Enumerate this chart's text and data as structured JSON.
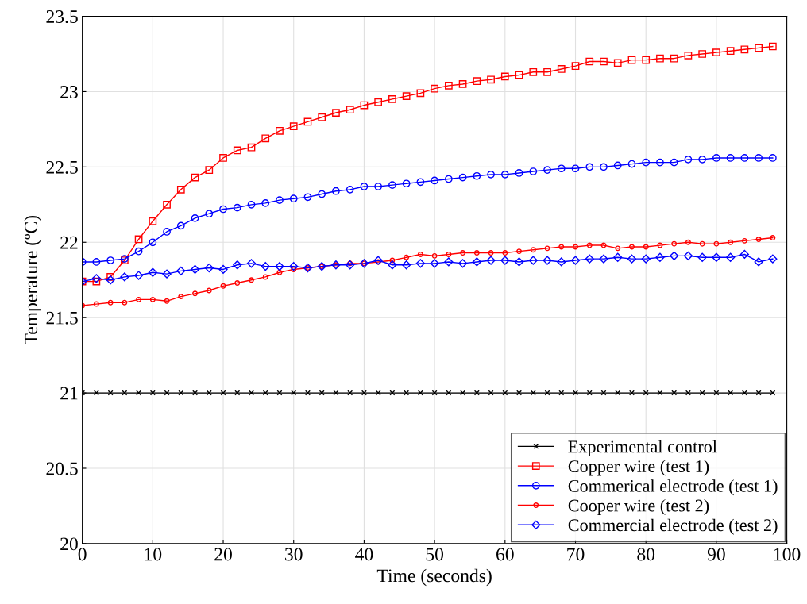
{
  "chart_data": {
    "type": "line",
    "xlabel": "Time (seconds)",
    "ylabel": "Temperature (ºC)",
    "x": [
      0,
      2,
      4,
      6,
      8,
      10,
      12,
      14,
      16,
      18,
      20,
      22,
      24,
      26,
      28,
      30,
      32,
      34,
      36,
      38,
      40,
      42,
      44,
      46,
      48,
      50,
      52,
      54,
      56,
      58,
      60,
      62,
      64,
      66,
      68,
      70,
      72,
      74,
      76,
      78,
      80,
      82,
      84,
      86,
      88,
      90,
      92,
      94,
      96,
      98
    ],
    "xlim": [
      0,
      100
    ],
    "xticks": [
      0,
      10,
      20,
      30,
      40,
      50,
      60,
      70,
      80,
      90,
      100
    ],
    "ylim": [
      20,
      23.5
    ],
    "yticks": [
      20,
      20.5,
      21,
      21.5,
      22,
      22.5,
      23,
      23.5
    ],
    "grid": true,
    "legend": "bottom right",
    "series": [
      {
        "name": "Experimental control",
        "color": "#000000",
        "marker": "cross",
        "values": [
          21,
          21,
          21,
          21,
          21,
          21,
          21,
          21,
          21,
          21,
          21,
          21,
          21,
          21,
          21,
          21,
          21,
          21,
          21,
          21,
          21,
          21,
          21,
          21,
          21,
          21,
          21,
          21,
          21,
          21,
          21,
          21,
          21,
          21,
          21,
          21,
          21,
          21,
          21,
          21,
          21,
          21,
          21,
          21,
          21,
          21,
          21,
          21,
          21,
          21
        ]
      },
      {
        "name": "Copper wire (test 1)",
        "color": "#ff0000",
        "marker": "square",
        "values": [
          21.74,
          21.74,
          21.77,
          21.88,
          22.02,
          22.14,
          22.25,
          22.35,
          22.43,
          22.48,
          22.56,
          22.61,
          22.63,
          22.69,
          22.74,
          22.77,
          22.8,
          22.83,
          22.86,
          22.88,
          22.91,
          22.93,
          22.95,
          22.97,
          22.99,
          23.02,
          23.04,
          23.05,
          23.07,
          23.08,
          23.1,
          23.11,
          23.13,
          23.13,
          23.15,
          23.17,
          23.2,
          23.2,
          23.19,
          23.21,
          23.21,
          23.22,
          23.22,
          23.24,
          23.25,
          23.26,
          23.27,
          23.28,
          23.29,
          23.3
        ]
      },
      {
        "name": "Commerical electrode (test 1)",
        "color": "#0000ff",
        "marker": "circle",
        "values": [
          21.87,
          21.87,
          21.88,
          21.89,
          21.94,
          22.0,
          22.07,
          22.11,
          22.16,
          22.19,
          22.22,
          22.23,
          22.25,
          22.26,
          22.28,
          22.29,
          22.3,
          22.32,
          22.34,
          22.35,
          22.37,
          22.37,
          22.38,
          22.39,
          22.4,
          22.41,
          22.42,
          22.43,
          22.44,
          22.45,
          22.45,
          22.46,
          22.47,
          22.48,
          22.49,
          22.49,
          22.5,
          22.5,
          22.51,
          22.52,
          22.53,
          22.53,
          22.53,
          22.55,
          22.55,
          22.56,
          22.56,
          22.56,
          22.56,
          22.56
        ]
      },
      {
        "name": "Cooper wire (test 2)",
        "color": "#ff0000",
        "marker": "circle",
        "values": [
          21.58,
          21.59,
          21.6,
          21.6,
          21.62,
          21.62,
          21.61,
          21.64,
          21.66,
          21.68,
          21.71,
          21.73,
          21.75,
          21.77,
          21.8,
          21.82,
          21.83,
          21.84,
          21.85,
          21.86,
          21.86,
          21.87,
          21.88,
          21.9,
          21.92,
          21.91,
          21.92,
          21.93,
          21.93,
          21.93,
          21.93,
          21.94,
          21.95,
          21.96,
          21.97,
          21.97,
          21.98,
          21.98,
          21.96,
          21.97,
          21.97,
          21.98,
          21.99,
          22.0,
          21.99,
          21.99,
          22.0,
          22.01,
          22.02,
          22.03
        ]
      },
      {
        "name": "Commercial electrode (test 2)",
        "color": "#0000ff",
        "marker": "diamond",
        "values": [
          21.74,
          21.76,
          21.75,
          21.77,
          21.78,
          21.8,
          21.79,
          21.81,
          21.82,
          21.83,
          21.82,
          21.85,
          21.86,
          21.84,
          21.84,
          21.84,
          21.83,
          21.84,
          21.85,
          21.85,
          21.86,
          21.88,
          21.85,
          21.85,
          21.86,
          21.86,
          21.87,
          21.86,
          21.87,
          21.88,
          21.88,
          21.87,
          21.88,
          21.88,
          21.87,
          21.88,
          21.89,
          21.89,
          21.9,
          21.89,
          21.89,
          21.9,
          21.91,
          21.91,
          21.9,
          21.9,
          21.9,
          21.92,
          21.87,
          21.89
        ]
      }
    ]
  }
}
